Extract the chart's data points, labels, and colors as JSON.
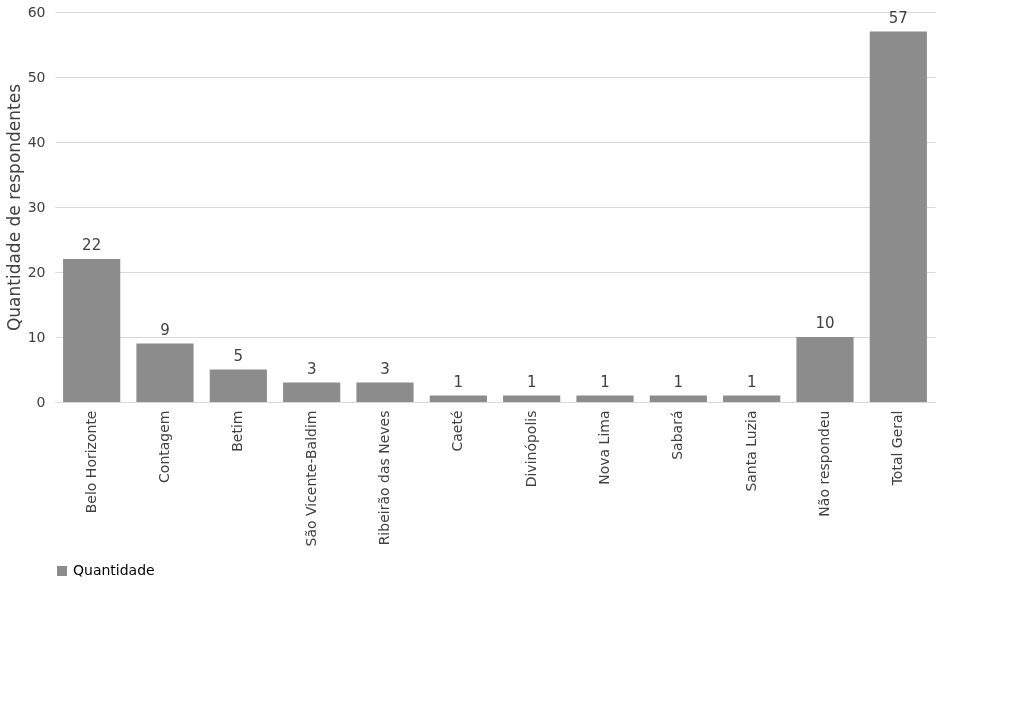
{
  "chart_data": {
    "type": "bar",
    "ylabel": "Quantidade de respondentes",
    "categories": [
      "Belo Horizonte",
      "Contagem",
      "Betim",
      "São Vicente-Baldim",
      "Ribeirão das Neves",
      "Caeté",
      "Divinópolis",
      "Nova Lima",
      "Sabará",
      "Santa Luzia",
      "Não respondeu",
      "Total Geral"
    ],
    "series": [
      {
        "name": "Quantidade",
        "color": "#8c8c8c",
        "values": [
          22,
          9,
          5,
          3,
          3,
          1,
          1,
          1,
          1,
          1,
          10,
          57
        ]
      }
    ],
    "ylim": [
      0,
      60
    ],
    "yticks": [
      0,
      10,
      20,
      30,
      40,
      50,
      60
    ],
    "grid": "y",
    "legend": "bottom",
    "data_labels": true
  }
}
